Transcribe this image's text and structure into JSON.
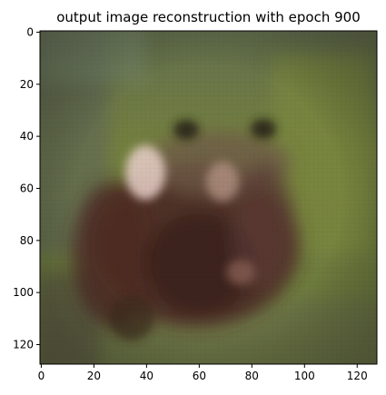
{
  "chart_data": {
    "type": "heatmap",
    "title": "output image reconstruction with epoch 900",
    "xlabel": "",
    "ylabel": "",
    "image_size": [
      128,
      128
    ],
    "xlim": [
      -0.5,
      127.5
    ],
    "ylim": [
      127.5,
      -0.5
    ],
    "x_ticks": [
      0,
      20,
      40,
      60,
      80,
      100,
      120
    ],
    "y_ticks": [
      0,
      20,
      40,
      60,
      80,
      100,
      120
    ],
    "x_tick_labels": [
      "0",
      "20",
      "40",
      "60",
      "80",
      "100",
      "120"
    ],
    "y_tick_labels": [
      "0",
      "20",
      "40",
      "60",
      "80",
      "100",
      "120"
    ],
    "y_axis_inverted": true,
    "grid": false,
    "content": "blurry reconstructed photo of a brown animal face against a green background"
  }
}
